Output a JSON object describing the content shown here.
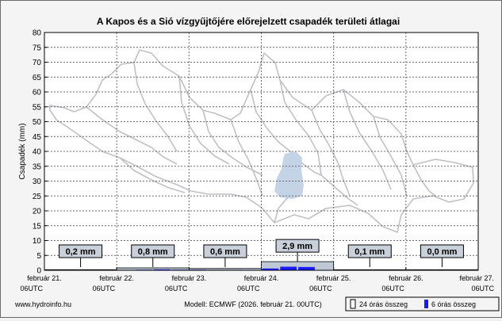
{
  "chart_data": {
    "type": "bar",
    "title": "A Kapos és a Sió vízgyűjtőjére előrejelzett csapadék területi átlagai",
    "ylabel": "Csapadék (mm)",
    "ylim": [
      0,
      80
    ],
    "yticks": [
      0,
      5,
      10,
      15,
      20,
      25,
      30,
      35,
      40,
      45,
      50,
      55,
      60,
      65,
      70,
      75,
      80
    ],
    "grid": true,
    "x_ticks": [
      {
        "line1": "február 21.",
        "line2": "06UTC"
      },
      {
        "line1": "február 22.",
        "line2": "06UTC"
      },
      {
        "line1": "február 23.",
        "line2": "06UTC"
      },
      {
        "line1": "február 24.",
        "line2": "06UTC"
      },
      {
        "line1": "február 25.",
        "line2": "06UTC"
      },
      {
        "line1": "február 26.",
        "line2": "06UTC"
      },
      {
        "line1": "február 27.",
        "line2": "06UTC"
      }
    ],
    "daily_24h": [
      {
        "label": "0,2 mm",
        "value": 0.2
      },
      {
        "label": "0,8 mm",
        "value": 0.8
      },
      {
        "label": "0,6 mm",
        "value": 0.6
      },
      {
        "label": "2,9 mm",
        "value": 2.9
      },
      {
        "label": "0,1 mm",
        "value": 0.1
      },
      {
        "label": "0,0 mm",
        "value": 0.0
      }
    ],
    "six_hourly": [
      0.0,
      0.05,
      0.1,
      0.05,
      0.1,
      0.2,
      0.3,
      0.2,
      0.2,
      0.15,
      0.15,
      0.1,
      0.6,
      1.2,
      1.1,
      0.0,
      0.05,
      0.05,
      0.0,
      0.0,
      0.0,
      0.0,
      0.0,
      0.0
    ],
    "legend": {
      "placement": "bottom-right",
      "items": [
        {
          "name": "24 órás összeg",
          "color": "#bfc9d6"
        },
        {
          "name": "6 órás összeg",
          "color": "#1a1aff"
        }
      ]
    }
  },
  "footer": {
    "source": "www.hydroinfo.hu",
    "model": "Modell: ECMWF (2026. február 21. 00UTC)"
  },
  "colors": {
    "daily_fill": "#bfc9d6",
    "six_hour_fill": "#1a1aff",
    "map_outline": "#c0c0c8",
    "catchment": "#c4d4e6"
  },
  "map_icon": "catchment-map-icon"
}
